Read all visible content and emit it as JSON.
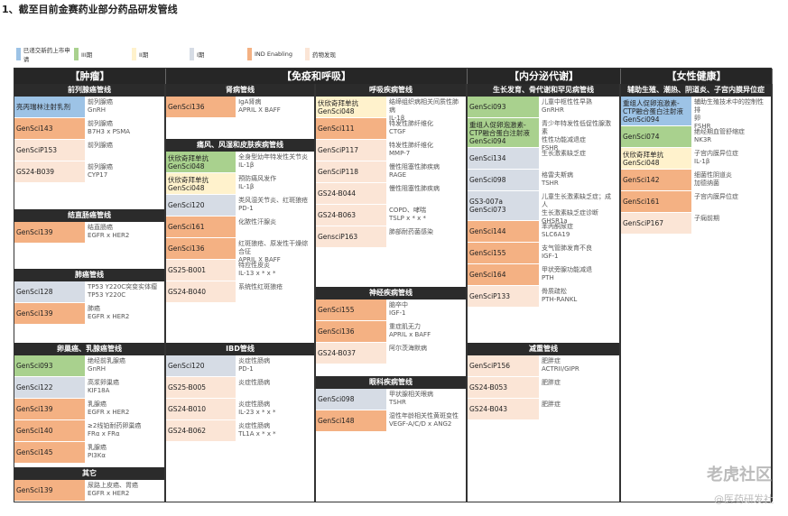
{
  "title": "1、截至目前金赛药业部分药品研发管线",
  "colors": {
    "nda": "#9dc3e6",
    "p3": "#a9d18e",
    "p2": "#fff2cc",
    "p1": "#d6dce5",
    "ind": "#f4b183",
    "disc": "#fbe5d6"
  },
  "legend": [
    {
      "stage": "nda",
      "label": "已递交新药上市申请"
    },
    {
      "stage": "p3",
      "label": "III期"
    },
    {
      "stage": "p2",
      "label": "II期"
    },
    {
      "stage": "p1",
      "label": "I期"
    },
    {
      "stage": "ind",
      "label": "IND Enabling"
    },
    {
      "stage": "disc",
      "label": "药物发现"
    }
  ],
  "categories": [
    "【肿瘤】",
    "【免疫和呼吸】",
    "【内分泌代谢】",
    "【女性健康】"
  ],
  "columns": [
    [
      {
        "title": "前列腺癌管线",
        "items": [
          {
            "name": "亮丙瑞林注射乳剂",
            "stage": "nda",
            "desc": "前列腺癌\nGnRH"
          },
          {
            "name": "GenSci143",
            "stage": "ind",
            "desc": "前列腺癌\nB7H3 x PSMA"
          },
          {
            "name": "GenSciP153",
            "stage": "disc",
            "desc": "前列腺癌"
          },
          {
            "name": "GS24-B039",
            "stage": "disc",
            "desc": "前列腺癌\nCYP17"
          }
        ]
      },
      {
        "title": "结直肠癌管线",
        "items": [
          {
            "name": "GenSci139",
            "stage": "ind",
            "desc": "结直肠癌\nEGFR x HER2"
          }
        ]
      },
      {
        "title": "肺癌管线",
        "items": [
          {
            "name": "GenSci128",
            "stage": "p1",
            "desc": "TP53 Y220C突变实体瘤\nTP53 Y220C"
          },
          {
            "name": "GenSci139",
            "stage": "ind",
            "desc": "肺癌\nEGFR x HER2"
          }
        ]
      },
      {
        "title": "卵巢癌、乳腺癌管线",
        "items": [
          {
            "name": "GenSci093",
            "stage": "p3",
            "desc": "绝经前乳腺癌\nGnRH"
          },
          {
            "name": "GenSci122",
            "stage": "p1",
            "desc": "高浆卵巢癌\nKIF18A"
          },
          {
            "name": "GenSci139",
            "stage": "ind",
            "desc": "乳腺癌\nEGFR x HER2"
          },
          {
            "name": "GenSci140",
            "stage": "ind",
            "desc": "≥2线铂耐药卵巢癌\nFRα x FRα"
          },
          {
            "name": "GenSci145",
            "stage": "ind",
            "desc": "乳腺癌\nPI3Kα"
          }
        ]
      },
      {
        "title": "其它",
        "items": [
          {
            "name": "GenSci139",
            "stage": "ind",
            "desc": "尿路上皮癌、胃癌\nEGFR x HER2"
          }
        ]
      }
    ],
    [
      {
        "title": "肾病管线",
        "items": [
          {
            "name": "GenSci136",
            "stage": "ind",
            "desc": "IgA肾病\nAPRIL X BAFF"
          }
        ]
      },
      {
        "title": "痛风、风湿和皮肤疾病管线",
        "items": [
          {
            "name": "伏欣奇拜单抗\nGenSci048",
            "stage": "p3",
            "desc": "全身型幼年特发性关节炎\nIL-1β"
          },
          {
            "name": "伏欣奇拜单抗\nGenSci048",
            "stage": "p2",
            "desc": "预防痛风发作\nIL-1β"
          },
          {
            "name": "GenSci120",
            "stage": "p1",
            "desc": "类风湿关节炎、红斑狼疮\nPD-1"
          },
          {
            "name": "GenSci161",
            "stage": "ind",
            "desc": "化脓性汗腺炎"
          },
          {
            "name": "GenSci136",
            "stage": "ind",
            "desc": "红斑狼疮、原发性干燥综合征\nAPRIL X BAFF"
          },
          {
            "name": "GS25-B001",
            "stage": "disc",
            "desc": "特应性皮炎\nIL-13 x * x *"
          },
          {
            "name": "GS24-B040",
            "stage": "disc",
            "desc": "系统性红斑狼疮"
          }
        ]
      },
      {
        "title": "IBD管线",
        "items": [
          {
            "name": "GenSci120",
            "stage": "p1",
            "desc": "炎症性肠病\nPD-1"
          },
          {
            "name": "GS25-B005",
            "stage": "disc",
            "desc": "炎症性肠病"
          },
          {
            "name": "GS24-B010",
            "stage": "disc",
            "desc": "炎症性肠病\nIL-23 x * x *"
          },
          {
            "name": "GS24-B062",
            "stage": "disc",
            "desc": "炎症性肠病\nTL1A x * x *"
          }
        ]
      }
    ],
    [
      {
        "title": "呼吸疾病管线",
        "items": [
          {
            "name": "伏欣奇拜单抗\nGenSci048",
            "stage": "p2",
            "desc": "结缔组织病相关间质性肺病\nIL-1β"
          },
          {
            "name": "GenSci111",
            "stage": "ind",
            "desc": "特发性肺纤维化\nCTGF"
          },
          {
            "name": "GenSciP117",
            "stage": "disc",
            "desc": "特发性肺纤维化\nMMP-7"
          },
          {
            "name": "GenSciP118",
            "stage": "disc",
            "desc": "慢性阻塞性肺疾病\nRAGE"
          },
          {
            "name": "GS24-B044",
            "stage": "disc",
            "desc": "慢性阻塞性肺疾病"
          },
          {
            "name": "GS24-B063",
            "stage": "disc",
            "desc": "COPD、哮喘\nTSLP x * x *"
          },
          {
            "name": "GensciP163",
            "stage": "disc",
            "desc": "肺部耐药菌感染"
          }
        ]
      },
      {
        "title": "神经疾病管线",
        "items": [
          {
            "name": "GenSci155",
            "stage": "ind",
            "desc": "脑卒中\nIGF-1"
          },
          {
            "name": "GenSci136",
            "stage": "ind",
            "desc": "重症肌无力\nAPRIL x BAFF"
          },
          {
            "name": "GS24-B037",
            "stage": "disc",
            "desc": "阿尔茨海默病"
          }
        ]
      },
      {
        "title": "眼科疾病管线",
        "items": [
          {
            "name": "GenSci098",
            "stage": "p1",
            "desc": "甲状腺相关眼病\nTSHR"
          },
          {
            "name": "GenSci148",
            "stage": "ind",
            "desc": "湿性年龄相关性黄斑变性\nVEGF-A/C/D x ANG2"
          }
        ]
      }
    ],
    [
      {
        "title": "生长发育、骨代谢和罕见病管线",
        "items": [
          {
            "name": "GenSci093",
            "stage": "p3",
            "desc": "儿童中枢性性早熟\nGnRHR"
          },
          {
            "name": "重组人促卵泡激素-\nCTP融合蛋白注射液\nGenSci094",
            "stage": "p3",
            "desc": "青少年特发性低促性腺激素\n性性功能减退症\nFSHR"
          },
          {
            "name": "GenSci134",
            "stage": "p1",
            "desc": "生长激素缺乏症"
          },
          {
            "name": "GenSci098",
            "stage": "p1",
            "desc": "格雷夫斯病\nTSHR"
          },
          {
            "name": "GS3-007a\nGenSci073",
            "stage": "p1",
            "desc": "儿童生长激素缺乏症；成人\n生长激素缺乏症诊断\nGHSR1a"
          },
          {
            "name": "GenSci144",
            "stage": "ind",
            "desc": "苯丙酮尿症\nSLC6A19"
          },
          {
            "name": "GenSci155",
            "stage": "ind",
            "desc": "支气管肺发育不良\nIGF-1"
          },
          {
            "name": "GenSci164",
            "stage": "ind",
            "desc": "甲状旁腺功能减退\nPTH"
          },
          {
            "name": "GenSciP133",
            "stage": "disc",
            "desc": "骨质疏松\nPTH-RANKL"
          }
        ]
      },
      {
        "title": "减重管线",
        "items": [
          {
            "name": "GenSciP156",
            "stage": "disc",
            "desc": "肥胖症\nACTRII/GIPR"
          },
          {
            "name": "GS24-B053",
            "stage": "disc",
            "desc": "肥胖症"
          },
          {
            "name": "GS24-B043",
            "stage": "disc",
            "desc": "肥胖症"
          }
        ]
      }
    ],
    [
      {
        "title": "辅助生殖、潮热、阴道炎、子宫内膜异位症",
        "items": [
          {
            "name": "重组人促卵泡激素-\nCTP融合蛋白注射液\nGenSci094",
            "stage": "nda",
            "desc": "辅助生殖技术中的控制性排\n卵\nFSHR"
          },
          {
            "name": "GenSci074",
            "stage": "p3",
            "desc": "绝经期血管舒缩症\nNK3R"
          },
          {
            "name": "伏欣奇拜单抗\nGenSci048",
            "stage": "p2",
            "desc": "子宫内膜异位症\nIL-1β"
          },
          {
            "name": "GenSci142",
            "stage": "ind",
            "desc": "细菌性阴道炎\n加德纳菌"
          },
          {
            "name": "GenSci161",
            "stage": "ind",
            "desc": "子宫内膜异位症"
          },
          {
            "name": "GenSciP167",
            "stage": "disc",
            "desc": "子痫前期"
          }
        ]
      }
    ]
  ],
  "watermark": {
    "main": "老虎社区",
    "sub": "@医药研发社"
  }
}
